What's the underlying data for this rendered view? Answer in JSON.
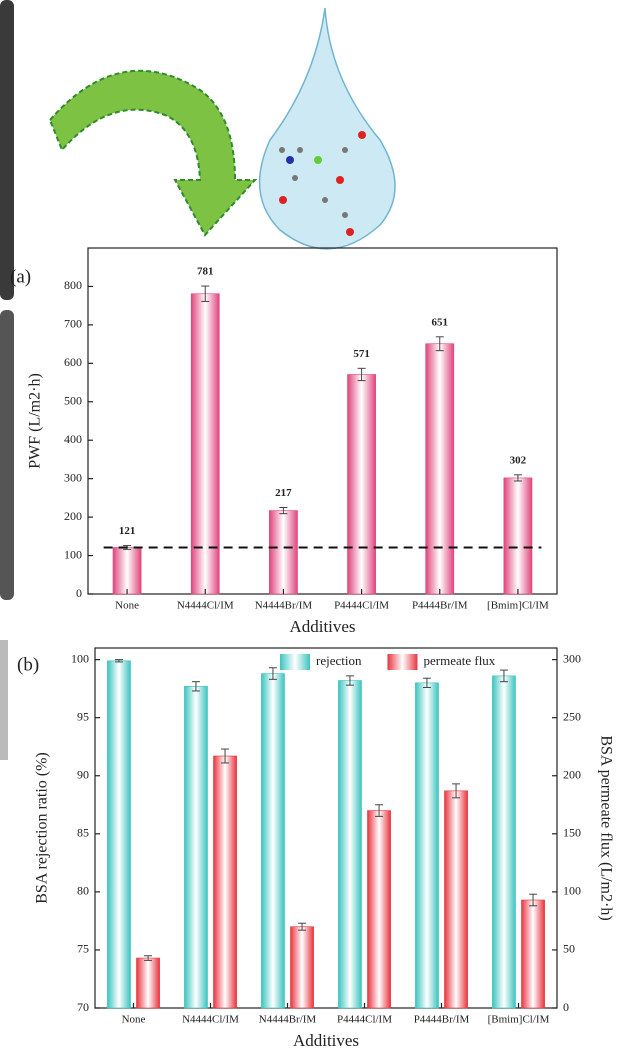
{
  "chart_data": [
    {
      "type": "bar",
      "panel_label": "(a)",
      "y_label": "PWF (L/m2·h)",
      "x_label": "Additives",
      "categories": [
        "None",
        "N4444Cl/IM",
        "N4444Br/IM",
        "P4444Cl/IM",
        "P4444Br/IM",
        "[Bmim]Cl/IM"
      ],
      "values": [
        121,
        781,
        217,
        571,
        651,
        302
      ],
      "errors": [
        5,
        20,
        8,
        16,
        18,
        8
      ],
      "color": "#e0457b",
      "reference_line": 121,
      "ylim": [
        0,
        900
      ],
      "yticks": [
        0,
        100,
        200,
        300,
        400,
        500,
        600,
        700,
        800
      ]
    },
    {
      "type": "bar",
      "panel_label": "(b)",
      "y_label": "BSA rejection ratio (%)",
      "y2_label": "BSA permeate flux (L/m2·h)",
      "x_label": "Additives",
      "categories": [
        "None",
        "N4444Cl/IM",
        "N4444Br/IM",
        "P4444Cl/IM",
        "P4444Br/IM",
        "[Bmim]Cl/IM"
      ],
      "series": [
        {
          "name": "rejection",
          "color": "#3cc4c0",
          "values": [
            99.9,
            97.7,
            98.8,
            98.2,
            98.0,
            98.6
          ],
          "errors": [
            0.1,
            0.4,
            0.5,
            0.4,
            0.4,
            0.5
          ]
        },
        {
          "name": "permeate flux",
          "color": "#e8343f",
          "axis": "y2",
          "values": [
            43,
            217,
            70,
            170,
            187,
            93
          ],
          "errors": [
            2,
            6,
            3,
            5,
            6,
            5
          ]
        }
      ],
      "ylim": [
        70,
        101
      ],
      "yticks": [
        70,
        75,
        80,
        85,
        90,
        95,
        100
      ],
      "y2lim": [
        0,
        310
      ],
      "y2ticks": [
        0,
        50,
        100,
        150,
        200,
        250,
        300
      ],
      "legend": "top"
    }
  ]
}
